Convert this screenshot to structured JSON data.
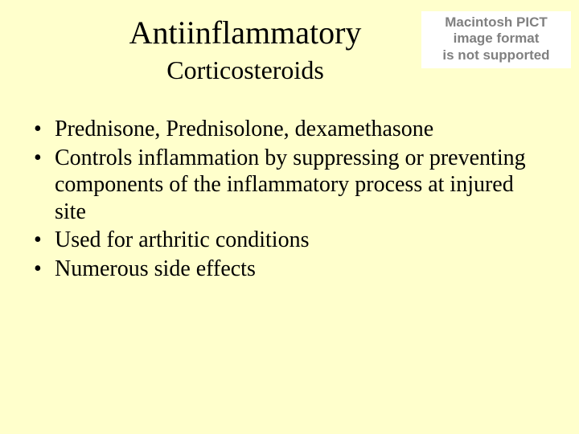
{
  "background_color": "#ffffcc",
  "text_color": "#000000",
  "title": {
    "line1": "Antiinflammatory",
    "line2": "Corticosteroids",
    "font_family": "Times New Roman",
    "line1_fontsize": 40,
    "line2_fontsize": 32
  },
  "placeholder": {
    "line1": "Macintosh PICT",
    "line2": "image format",
    "line3": "is not supported",
    "background_color": "#ffffff",
    "text_color": "#808080",
    "font_family": "Arial",
    "fontsize": 17,
    "font_weight": "bold"
  },
  "bullets": {
    "marker": "•",
    "fontsize": 28,
    "items": [
      "Prednisone, Prednisolone, dexamethasone",
      "Controls inflammation by suppressing or preventing components of the inflammatory process at injured site",
      "Used for arthritic conditions",
      "Numerous side effects"
    ]
  }
}
